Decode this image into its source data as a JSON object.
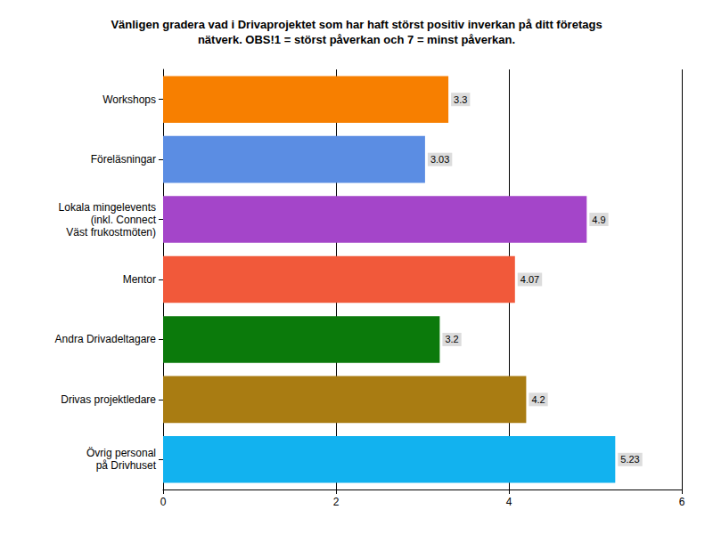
{
  "chart_data": {
    "type": "bar",
    "orientation": "horizontal",
    "title": "Vänligen gradera vad i Drivaprojektet som har haft störst positiv inverkan på ditt företags\nnätverk. OBS!1 = störst påverkan och 7 = minst påverkan.",
    "categories": [
      "Workshops",
      "Föreläsningar",
      "Lokala mingelevents\n(inkl. Connect\nVäst frukostmöten)",
      "Mentor",
      "Andra Drivadeltagare",
      "Drivas projektledare",
      "Övrig personal\npå Drivhuset"
    ],
    "values": [
      3.3,
      3.03,
      4.9,
      4.07,
      3.2,
      4.2,
      5.23
    ],
    "colors": [
      "#f77f00",
      "#5b8de3",
      "#a445c9",
      "#f1593a",
      "#0b7a0b",
      "#a97c12",
      "#12b2ef"
    ],
    "xlim": [
      0,
      6
    ],
    "xticks": [
      0,
      2,
      4,
      6
    ],
    "grid": true,
    "data_labels": true
  }
}
